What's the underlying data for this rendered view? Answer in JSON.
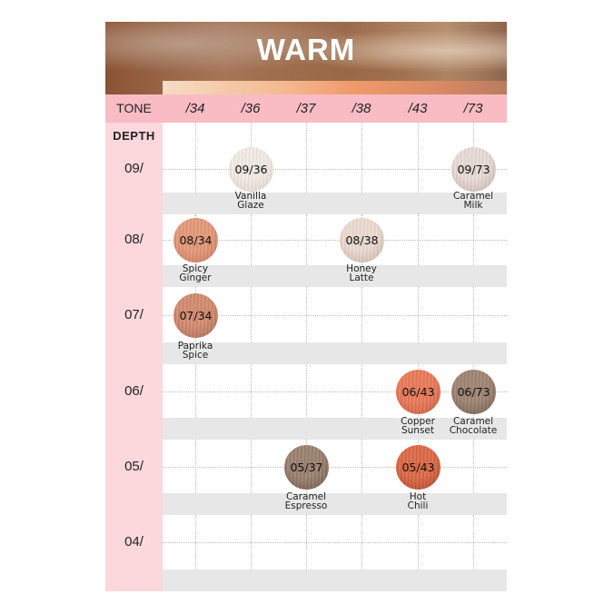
{
  "title": "WARM",
  "tone_label": "TONE",
  "depth_label": "DEPTH",
  "tones": [
    "/34",
    "/36",
    "/37",
    "/38",
    "/43",
    "/73"
  ],
  "depths": [
    "09/",
    "08/",
    "07/",
    "06/",
    "05/",
    "04/"
  ],
  "swatches": [
    {
      "code": "09/36",
      "name1": "Vanilla",
      "name2": "Glaze",
      "depth": 0,
      "tone": 1,
      "color": "#f4ece6",
      "edge": "#ddd0c7"
    },
    {
      "code": "09/73",
      "name1": "Caramel",
      "name2": "Milk",
      "depth": 0,
      "tone": 5,
      "color": "#e8dcd6",
      "edge": "#c6b1a8"
    },
    {
      "code": "08/34",
      "name1": "Spicy",
      "name2": "Ginger",
      "depth": 1,
      "tone": 0,
      "color": "#e59a7a",
      "edge": "#c8765a"
    },
    {
      "code": "08/38",
      "name1": "Honey",
      "name2": "Latte",
      "depth": 1,
      "tone": 3,
      "color": "#eddcd2",
      "edge": "#c7b0a4"
    },
    {
      "code": "07/34",
      "name1": "Paprika",
      "name2": "Spice",
      "depth": 2,
      "tone": 0,
      "color": "#d48c70",
      "edge": "#a86a55"
    },
    {
      "code": "06/43",
      "name1": "Copper",
      "name2": "Sunset",
      "depth": 3,
      "tone": 4,
      "color": "#ec7b5b",
      "edge": "#c65a3d"
    },
    {
      "code": "06/73",
      "name1": "Caramel",
      "name2": "Chocolate",
      "depth": 3,
      "tone": 5,
      "color": "#a08674",
      "edge": "#6f5a4d"
    },
    {
      "code": "05/37",
      "name1": "Caramel",
      "name2": "Espresso",
      "depth": 4,
      "tone": 2,
      "color": "#9c8272",
      "edge": "#6a5549"
    },
    {
      "code": "05/43",
      "name1": "Hot",
      "name2": "Chili",
      "depth": 4,
      "tone": 4,
      "color": "#de6a47",
      "edge": "#a8452c"
    }
  ]
}
